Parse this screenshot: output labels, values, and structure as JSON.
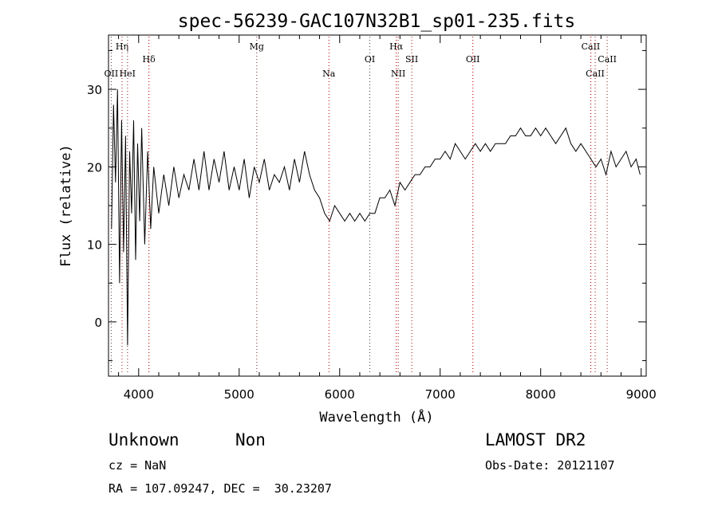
{
  "chart_data": {
    "type": "line",
    "title": "spec-56239-GAC107N32B1_sp01-235.fits",
    "xlabel": "Wavelength (Å)",
    "ylabel": "Flux (relative)",
    "xlim": [
      3700,
      9050
    ],
    "ylim": [
      -7,
      37
    ],
    "xticks": [
      4000,
      5000,
      6000,
      7000,
      8000,
      9000
    ],
    "yticks": [
      0,
      10,
      20,
      30
    ],
    "grid": false,
    "line_color": "#000000",
    "marker_color": "#cc0000",
    "series": [
      {
        "x": [
          3730,
          3750,
          3770,
          3790,
          3810,
          3830,
          3850,
          3870,
          3890,
          3910,
          3930,
          3950,
          3970,
          3990,
          4010,
          4030,
          4060,
          4090,
          4120,
          4150,
          4200,
          4250,
          4300,
          4350,
          4400,
          4450,
          4500,
          4550,
          4600,
          4650,
          4700,
          4750,
          4800,
          4850,
          4900,
          4950,
          5000,
          5050,
          5100,
          5150,
          5200,
          5250,
          5300,
          5350,
          5400,
          5450,
          5500,
          5550,
          5600,
          5650,
          5700,
          5750,
          5800,
          5850,
          5900,
          5950,
          6000,
          6050,
          6100,
          6150,
          6200,
          6250,
          6300,
          6350,
          6400,
          6450,
          6500,
          6550,
          6600,
          6650,
          6700,
          6750,
          6800,
          6850,
          6900,
          6950,
          7000,
          7050,
          7100,
          7150,
          7200,
          7250,
          7300,
          7350,
          7400,
          7450,
          7500,
          7550,
          7600,
          7650,
          7700,
          7750,
          7800,
          7850,
          7900,
          7950,
          8000,
          8050,
          8100,
          8150,
          8200,
          8250,
          8300,
          8350,
          8400,
          8450,
          8500,
          8550,
          8600,
          8650,
          8700,
          8750,
          8800,
          8850,
          8900,
          8950,
          8990
        ],
        "y": [
          12,
          28,
          18,
          30,
          5,
          26,
          9,
          24,
          -3,
          22,
          14,
          26,
          8,
          23,
          13,
          25,
          10,
          22,
          12,
          20,
          14,
          19,
          15,
          20,
          16,
          19,
          17,
          21,
          17,
          22,
          17,
          21,
          18,
          22,
          17,
          20,
          17,
          21,
          16,
          20,
          18,
          21,
          17,
          19,
          18,
          20,
          17,
          21,
          18,
          22,
          19,
          17,
          16,
          14,
          13,
          15,
          14,
          13,
          14,
          13,
          14,
          13,
          14,
          14,
          16,
          16,
          17,
          15,
          18,
          17,
          18,
          19,
          19,
          20,
          20,
          21,
          21,
          22,
          21,
          23,
          22,
          21,
          22,
          23,
          22,
          23,
          22,
          23,
          23,
          23,
          24,
          24,
          25,
          24,
          24,
          25,
          24,
          25,
          24,
          23,
          24,
          25,
          23,
          22,
          23,
          22,
          21,
          20,
          21,
          19,
          22,
          20,
          21,
          22,
          20,
          21,
          19
        ]
      }
    ],
    "lines": [
      {
        "label": "Hη",
        "x": 3835,
        "row": 0
      },
      {
        "label": "OII",
        "x": 3727,
        "row": 2
      },
      {
        "label": "HeI",
        "x": 3889,
        "row": 2
      },
      {
        "label": "Hδ",
        "x": 4102,
        "row": 1
      },
      {
        "label": "Mg",
        "x": 5175,
        "row": 0
      },
      {
        "label": "Na",
        "x": 5893,
        "row": 2
      },
      {
        "label": "OI",
        "x": 6300,
        "row": 1
      },
      {
        "label": "Hα",
        "x": 6563,
        "row": 0
      },
      {
        "label": "NII",
        "x": 6583,
        "row": 2
      },
      {
        "label": "SII",
        "x": 6717,
        "row": 1
      },
      {
        "label": "OII",
        "x": 7325,
        "row": 1
      },
      {
        "label": "CaII",
        "x": 8498,
        "row": 0
      },
      {
        "label": "CaII",
        "x": 8542,
        "row": 2
      },
      {
        "label": "CaII",
        "x": 8662,
        "row": 1
      }
    ]
  },
  "info": {
    "classification": "Unknown",
    "subclass": "Non",
    "survey": "LAMOST DR2",
    "cz": "cz = NaN",
    "obs_date": "Obs-Date: 20121107",
    "coords": "RA = 107.09247, DEC =  30.23207"
  }
}
